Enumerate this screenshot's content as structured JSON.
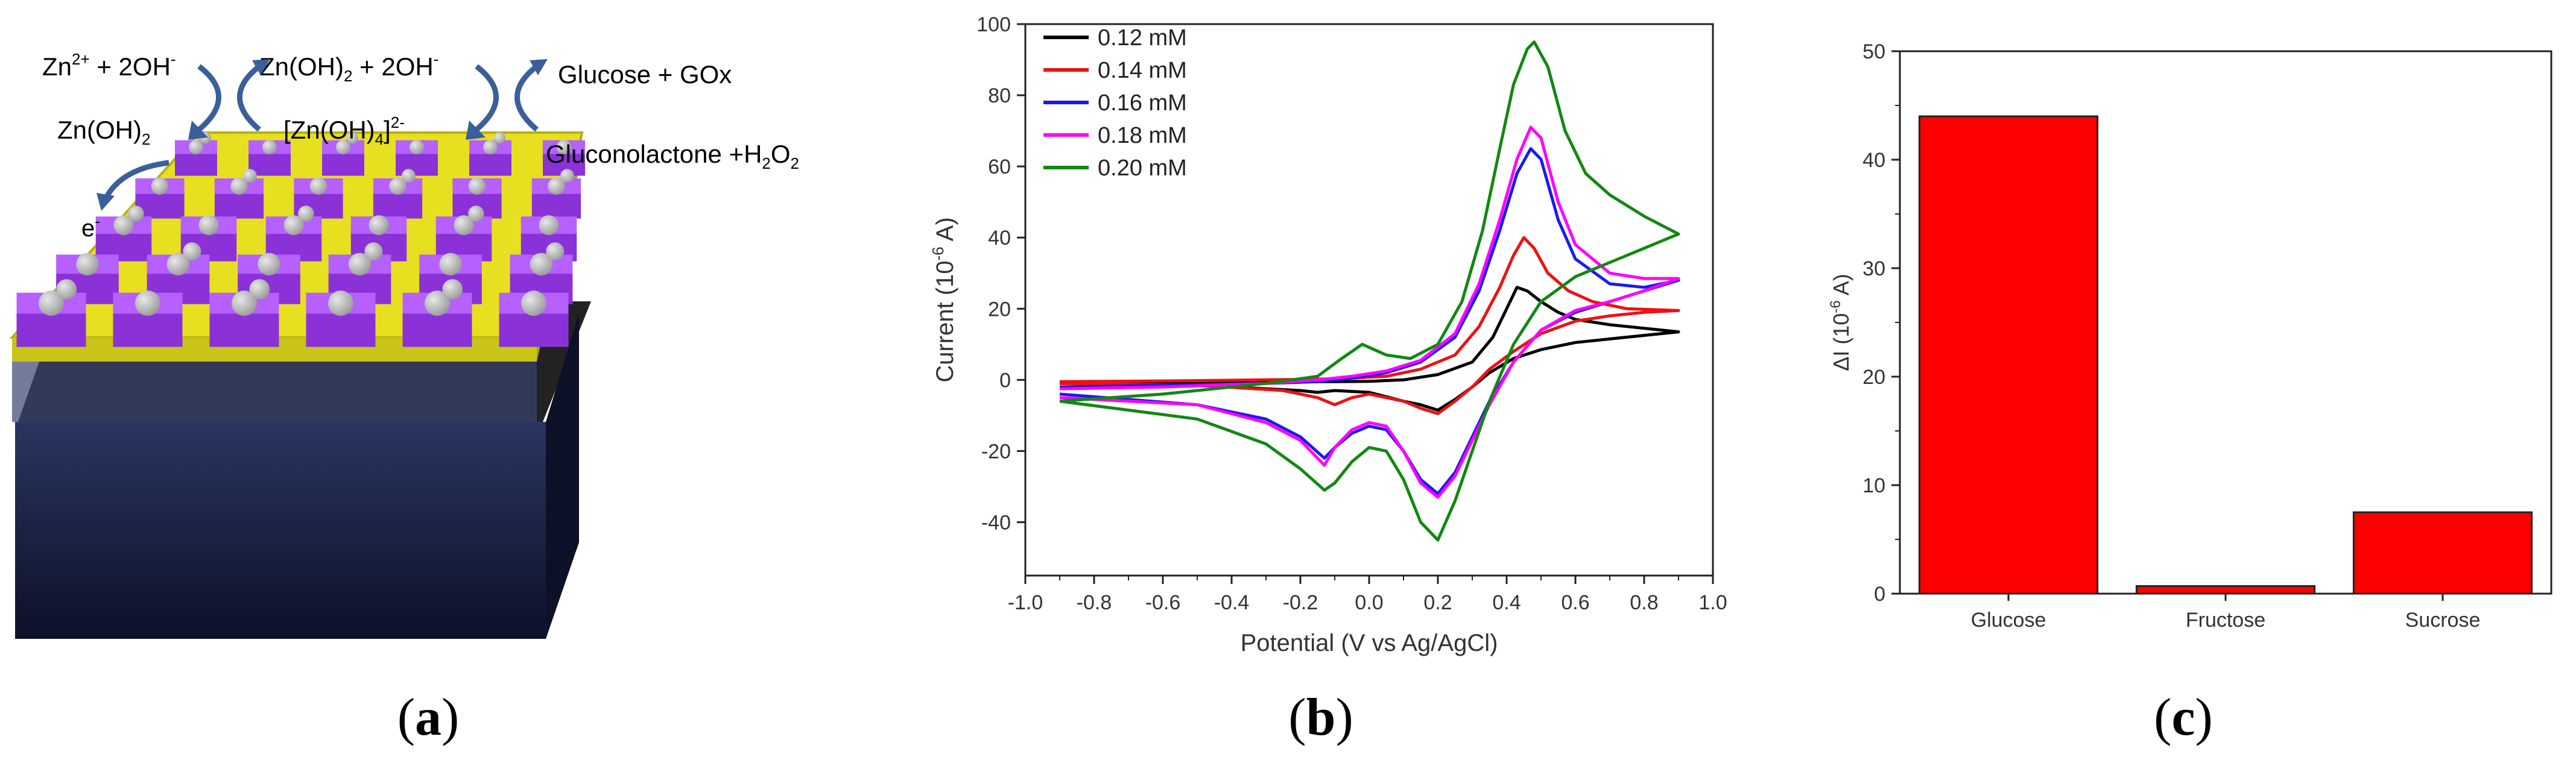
{
  "panel_a": {
    "reaction_1_left": "Zn",
    "reaction_1_left_sup": "2+",
    "reaction_1_left_rest": " + 2OH",
    "reaction_1_left_minus": "-",
    "reaction_1_right": "Zn(OH)",
    "reaction_1_right_sub": "2",
    "reaction_1_right_rest": " + 2OH",
    "reaction_1_right_minus": "-",
    "reaction_2_left": "Zn(OH)",
    "reaction_2_left_sub": "2",
    "reaction_2_right": "[Zn(OH)",
    "reaction_2_right_sub": "4",
    "reaction_2_right_rest": "]",
    "reaction_2_right_sup": "2-",
    "reaction_3_top": "Glucose + GOx",
    "reaction_3_bottom": "Gluconolactone +H",
    "reaction_3_bottom_sub1": "2",
    "reaction_3_bottom_mid": "O",
    "reaction_3_bottom_sub2": "2",
    "electron": "e",
    "electron_sup": "-"
  },
  "labels": {
    "a": "a",
    "b": "b",
    "c": "c"
  },
  "colors": {
    "black": "#000000",
    "red": "#ee1111",
    "blue": "#1a1aee",
    "magenta": "#ff00ff",
    "green": "#118811",
    "bar_fill": "#ff0000",
    "gold": "#e6e020",
    "purple": "#a04ef0",
    "substrate": "#1a2040"
  },
  "chart_data": [
    {
      "type": "line",
      "title": "",
      "xlabel": "Potential (V vs Ag/AgCl)",
      "ylabel": "Current (10",
      "ylabel_sup": "-6",
      "ylabel_tail": " A)",
      "xlim": [
        -1.0,
        1.0
      ],
      "ylim": [
        -55,
        100
      ],
      "xticks": [
        "-1.0",
        "-0.8",
        "-0.6",
        "-0.4",
        "-0.2",
        "0.0",
        "0.2",
        "0.4",
        "0.6",
        "0.8",
        "1.0"
      ],
      "yticks": [
        "-40",
        "-20",
        "0",
        "20",
        "40",
        "60",
        "80",
        "100"
      ],
      "legend_position": "top-left",
      "series": [
        {
          "name": "0.12 mM",
          "color": "#000000",
          "forward": [
            [
              -0.9,
              -0.8
            ],
            [
              -0.6,
              -0.7
            ],
            [
              -0.3,
              -0.5
            ],
            [
              -0.1,
              -0.5
            ],
            [
              0.0,
              -0.4
            ],
            [
              0.1,
              0.0
            ],
            [
              0.2,
              1.5
            ],
            [
              0.3,
              5
            ],
            [
              0.36,
              12
            ],
            [
              0.4,
              20
            ],
            [
              0.43,
              26
            ],
            [
              0.46,
              25
            ],
            [
              0.5,
              22
            ],
            [
              0.55,
              19
            ],
            [
              0.6,
              17
            ],
            [
              0.7,
              15.5
            ],
            [
              0.8,
              14.5
            ],
            [
              0.9,
              13.5
            ]
          ],
          "reverse": [
            [
              0.9,
              13.5
            ],
            [
              0.8,
              12.5
            ],
            [
              0.7,
              11.5
            ],
            [
              0.6,
              10.5
            ],
            [
              0.5,
              8.5
            ],
            [
              0.42,
              6
            ],
            [
              0.35,
              2
            ],
            [
              0.3,
              -2
            ],
            [
              0.25,
              -5.5
            ],
            [
              0.2,
              -8.5
            ],
            [
              0.15,
              -7
            ],
            [
              0.1,
              -6
            ],
            [
              0.0,
              -3.5
            ],
            [
              -0.1,
              -3
            ],
            [
              -0.15,
              -3.5
            ],
            [
              -0.2,
              -3
            ],
            [
              -0.4,
              -2
            ],
            [
              -0.6,
              -1.2
            ],
            [
              -0.9,
              -1
            ]
          ]
        },
        {
          "name": "0.14 mM",
          "color": "#ee1111",
          "forward": [
            [
              -0.9,
              -0.5
            ],
            [
              -0.6,
              -0.3
            ],
            [
              -0.3,
              0.0
            ],
            [
              -0.15,
              0.2
            ],
            [
              -0.05,
              0.5
            ],
            [
              0.05,
              1
            ],
            [
              0.15,
              3
            ],
            [
              0.25,
              7
            ],
            [
              0.32,
              15
            ],
            [
              0.38,
              26
            ],
            [
              0.42,
              35
            ],
            [
              0.45,
              40
            ],
            [
              0.48,
              37
            ],
            [
              0.52,
              30
            ],
            [
              0.58,
              25
            ],
            [
              0.65,
              22
            ],
            [
              0.75,
              20
            ],
            [
              0.9,
              19.5
            ]
          ],
          "reverse": [
            [
              0.9,
              19.5
            ],
            [
              0.8,
              19
            ],
            [
              0.7,
              18
            ],
            [
              0.6,
              16.5
            ],
            [
              0.5,
              13
            ],
            [
              0.42,
              8
            ],
            [
              0.35,
              3
            ],
            [
              0.3,
              -2
            ],
            [
              0.25,
              -6
            ],
            [
              0.2,
              -9.5
            ],
            [
              0.15,
              -8
            ],
            [
              0.1,
              -6
            ],
            [
              0.0,
              -4
            ],
            [
              -0.05,
              -5
            ],
            [
              -0.1,
              -7
            ],
            [
              -0.15,
              -5
            ],
            [
              -0.25,
              -3
            ],
            [
              -0.5,
              -1.5
            ],
            [
              -0.9,
              -1
            ]
          ]
        },
        {
          "name": "0.16 mM",
          "color": "#1a1aee",
          "forward": [
            [
              -0.9,
              -2
            ],
            [
              -0.6,
              -1.5
            ],
            [
              -0.3,
              -1
            ],
            [
              -0.15,
              -0.5
            ],
            [
              -0.05,
              0.5
            ],
            [
              0.05,
              2
            ],
            [
              0.15,
              5
            ],
            [
              0.25,
              12
            ],
            [
              0.32,
              25
            ],
            [
              0.38,
              42
            ],
            [
              0.43,
              58
            ],
            [
              0.47,
              65
            ],
            [
              0.5,
              62
            ],
            [
              0.55,
              45
            ],
            [
              0.6,
              34
            ],
            [
              0.7,
              27
            ],
            [
              0.8,
              26
            ],
            [
              0.9,
              28
            ]
          ],
          "reverse": [
            [
              0.9,
              28
            ],
            [
              0.8,
              25
            ],
            [
              0.7,
              22
            ],
            [
              0.6,
              19
            ],
            [
              0.5,
              14
            ],
            [
              0.42,
              5
            ],
            [
              0.35,
              -6
            ],
            [
              0.3,
              -16
            ],
            [
              0.25,
              -26
            ],
            [
              0.2,
              -32
            ],
            [
              0.15,
              -28
            ],
            [
              0.1,
              -20
            ],
            [
              0.05,
              -14
            ],
            [
              0.0,
              -13
            ],
            [
              -0.05,
              -15
            ],
            [
              -0.1,
              -19
            ],
            [
              -0.13,
              -22
            ],
            [
              -0.2,
              -16
            ],
            [
              -0.3,
              -11
            ],
            [
              -0.5,
              -7
            ],
            [
              -0.9,
              -4
            ]
          ]
        },
        {
          "name": "0.18 mM",
          "color": "#ff00ff",
          "forward": [
            [
              -0.9,
              -2.5
            ],
            [
              -0.6,
              -2
            ],
            [
              -0.3,
              -1
            ],
            [
              -0.15,
              0
            ],
            [
              -0.05,
              1
            ],
            [
              0.05,
              2.5
            ],
            [
              0.15,
              5.5
            ],
            [
              0.25,
              13
            ],
            [
              0.32,
              27
            ],
            [
              0.38,
              45
            ],
            [
              0.43,
              62
            ],
            [
              0.47,
              71
            ],
            [
              0.5,
              68
            ],
            [
              0.55,
              50
            ],
            [
              0.6,
              38
            ],
            [
              0.7,
              30
            ],
            [
              0.8,
              28.5
            ],
            [
              0.9,
              28.5
            ]
          ],
          "reverse": [
            [
              0.9,
              28.5
            ],
            [
              0.8,
              25
            ],
            [
              0.7,
              22
            ],
            [
              0.6,
              19.5
            ],
            [
              0.5,
              14
            ],
            [
              0.42,
              5
            ],
            [
              0.35,
              -7
            ],
            [
              0.3,
              -17
            ],
            [
              0.25,
              -27
            ],
            [
              0.2,
              -33
            ],
            [
              0.15,
              -29
            ],
            [
              0.1,
              -20
            ],
            [
              0.05,
              -13
            ],
            [
              0.0,
              -12
            ],
            [
              -0.05,
              -14
            ],
            [
              -0.1,
              -19
            ],
            [
              -0.13,
              -24
            ],
            [
              -0.2,
              -17
            ],
            [
              -0.3,
              -12
            ],
            [
              -0.5,
              -7
            ],
            [
              -0.9,
              -5
            ]
          ]
        },
        {
          "name": "0.20 mM",
          "color": "#118811",
          "forward": [
            [
              -0.9,
              -6
            ],
            [
              -0.6,
              -4
            ],
            [
              -0.3,
              -1
            ],
            [
              -0.15,
              1
            ],
            [
              -0.08,
              6
            ],
            [
              -0.02,
              10
            ],
            [
              0.05,
              7
            ],
            [
              0.12,
              6
            ],
            [
              0.2,
              10
            ],
            [
              0.27,
              22
            ],
            [
              0.33,
              42
            ],
            [
              0.38,
              65
            ],
            [
              0.42,
              83
            ],
            [
              0.46,
              93
            ],
            [
              0.48,
              95
            ],
            [
              0.52,
              88
            ],
            [
              0.57,
              70
            ],
            [
              0.63,
              58
            ],
            [
              0.7,
              52
            ],
            [
              0.8,
              46
            ],
            [
              0.9,
              41
            ]
          ],
          "reverse": [
            [
              0.9,
              41
            ],
            [
              0.8,
              37
            ],
            [
              0.7,
              33
            ],
            [
              0.6,
              29
            ],
            [
              0.5,
              22
            ],
            [
              0.42,
              10
            ],
            [
              0.35,
              -6
            ],
            [
              0.3,
              -20
            ],
            [
              0.25,
              -34
            ],
            [
              0.2,
              -45
            ],
            [
              0.15,
              -40
            ],
            [
              0.1,
              -28
            ],
            [
              0.05,
              -20
            ],
            [
              0.0,
              -19
            ],
            [
              -0.05,
              -23
            ],
            [
              -0.1,
              -29
            ],
            [
              -0.13,
              -31
            ],
            [
              -0.2,
              -25
            ],
            [
              -0.3,
              -18
            ],
            [
              -0.5,
              -11
            ],
            [
              -0.9,
              -6
            ]
          ]
        }
      ]
    },
    {
      "type": "bar",
      "title": "",
      "xlabel": "",
      "ylabel": "ΔI (10",
      "ylabel_sup": "-6",
      "ylabel_tail": " A)",
      "categories": [
        "Glucose",
        "Fructose",
        "Sucrose"
      ],
      "values": [
        44,
        0.7,
        7.5
      ],
      "ylim": [
        0,
        50
      ],
      "yticks": [
        "0",
        "10",
        "20",
        "30",
        "40",
        "50"
      ],
      "grid": false
    }
  ]
}
